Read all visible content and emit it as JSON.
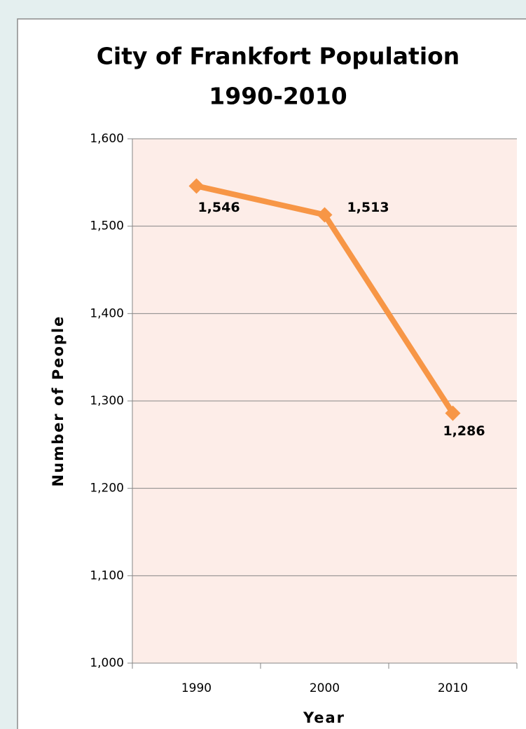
{
  "chart_data": {
    "type": "line",
    "title": [
      "City of Frankfort Population",
      "1990-2010"
    ],
    "xlabel": "Year",
    "ylabel": "Number of People",
    "categories": [
      "1990",
      "2000",
      "2010"
    ],
    "series": [
      {
        "name": "Population",
        "color": "#f79646",
        "values": [
          1546,
          1513,
          1286
        ],
        "value_labels": [
          "1,546",
          "1,513",
          "1,286"
        ]
      }
    ],
    "ylim": [
      1000,
      1600
    ],
    "yticks": [
      {
        "value": 1000,
        "label": "1,000"
      },
      {
        "value": 1100,
        "label": "1,100"
      },
      {
        "value": 1200,
        "label": "1,200"
      },
      {
        "value": 1300,
        "label": "1,300"
      },
      {
        "value": 1400,
        "label": "1,400"
      },
      {
        "value": 1500,
        "label": "1,500"
      },
      {
        "value": 1600,
        "label": "1,600"
      }
    ],
    "grid": true
  }
}
